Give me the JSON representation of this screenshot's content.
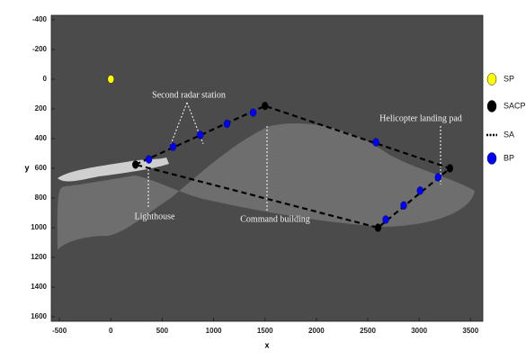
{
  "chart_data": {
    "type": "scatter",
    "x_label": "x",
    "y_label": "y",
    "xlim": [
      -580,
      3620
    ],
    "ylim": [
      -430,
      1630
    ],
    "y_inverted": true,
    "xticks": [
      -500,
      0,
      500,
      1000,
      1500,
      2000,
      2500,
      3000,
      3500
    ],
    "yticks": [
      -400,
      -200,
      0,
      200,
      400,
      600,
      800,
      1000,
      1200,
      1400,
      1600
    ],
    "legend": "outside-right",
    "series": [
      {
        "name": "SP",
        "color": "#ffff00",
        "style": "marker",
        "x": [
          0
        ],
        "values": [
          0
        ]
      },
      {
        "name": "SACP",
        "color": "#000000",
        "style": "marker",
        "x": [
          240,
          1500,
          3300,
          2600
        ],
        "values": [
          575,
          180,
          600,
          1000
        ]
      },
      {
        "name": "SA",
        "color": "#000000",
        "style": "dashed-line",
        "x": [
          240,
          1500,
          3300,
          2600,
          240
        ],
        "values": [
          575,
          180,
          600,
          1000,
          575
        ]
      },
      {
        "name": "BP",
        "color": "#0000ff",
        "style": "marker",
        "x": [
          370,
          605,
          870,
          1130,
          1385,
          2580,
          3185,
          3010,
          2850,
          2675
        ],
        "values": [
          540,
          455,
          375,
          300,
          225,
          425,
          660,
          750,
          850,
          945
        ]
      }
    ],
    "annotations": [
      "Second radar station",
      "Helicopter landing pad",
      "Lighthouse",
      "Command building"
    ]
  }
}
